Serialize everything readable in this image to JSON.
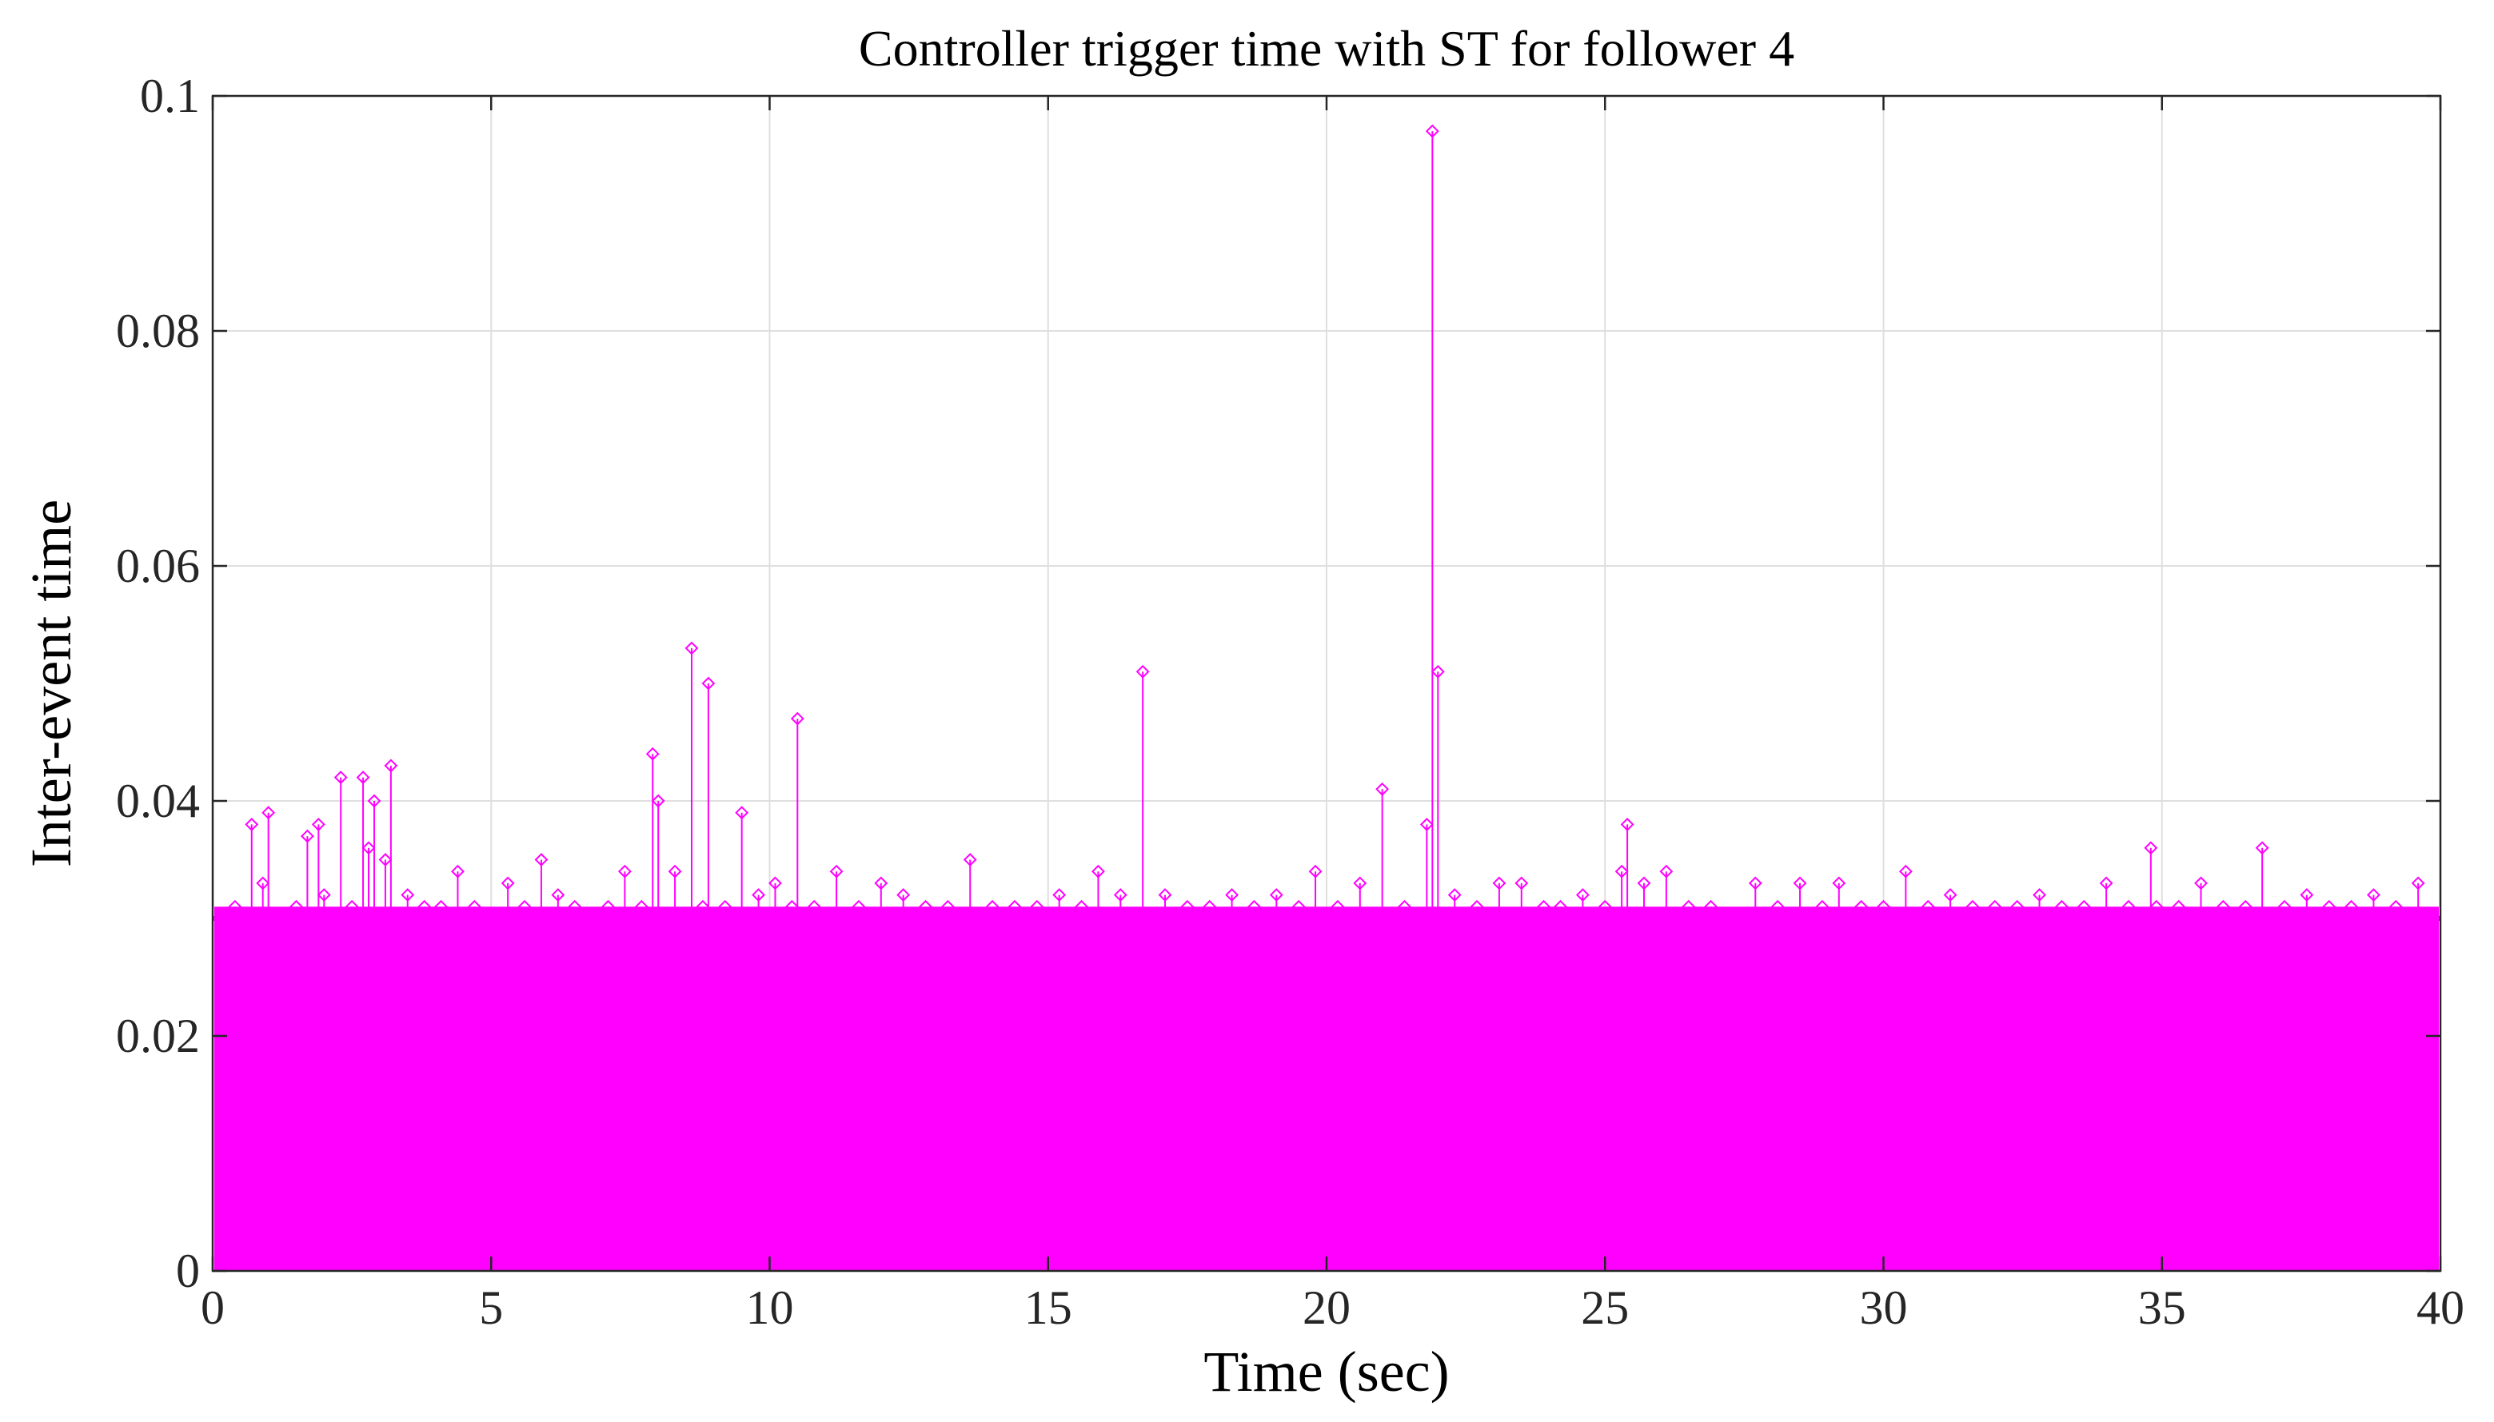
{
  "chart_data": {
    "type": "stem",
    "title": "Controller trigger time with ST for follower 4",
    "xlabel": "Time (sec)",
    "ylabel": "Inter-event time",
    "xlim": [
      0,
      40
    ],
    "ylim": [
      0,
      0.1
    ],
    "xticks": [
      0,
      5,
      10,
      15,
      20,
      25,
      30,
      35,
      40
    ],
    "xtick_labels": [
      "0",
      "5",
      "10",
      "15",
      "20",
      "25",
      "30",
      "35",
      "40"
    ],
    "yticks": [
      0,
      0.02,
      0.04,
      0.06,
      0.08,
      0.1
    ],
    "ytick_labels": [
      "0",
      "0.02",
      "0.04",
      "0.06",
      "0.08",
      "0.1"
    ],
    "grid": true,
    "marker": "diamond",
    "color": "#ff00ff",
    "series": [
      {
        "x": [
          0.1,
          0.4,
          0.7,
          0.9,
          1.0,
          1.3,
          1.5,
          1.7,
          1.9,
          2.0,
          2.1,
          2.3,
          2.5,
          2.7,
          2.8,
          2.9,
          3.1,
          3.2,
          3.5,
          3.8,
          4.1,
          4.4,
          4.7,
          5.0,
          5.3,
          5.6,
          5.9,
          6.2,
          6.5,
          6.8,
          7.1,
          7.4,
          7.7,
          7.9,
          8.0,
          8.3,
          8.6,
          8.8,
          8.9,
          9.2,
          9.5,
          9.8,
          10.1,
          10.4,
          10.5,
          10.8,
          11.2,
          11.6,
          12.0,
          12.4,
          12.8,
          13.2,
          13.6,
          14.0,
          14.4,
          14.8,
          15.2,
          15.6,
          15.9,
          16.3,
          16.7,
          17.1,
          17.5,
          17.9,
          18.3,
          18.7,
          19.1,
          19.5,
          19.8,
          20.2,
          20.6,
          21.0,
          21.1,
          21.4,
          21.7,
          21.8,
          21.9,
          22.0,
          22.3,
          22.7,
          23.1,
          23.5,
          23.9,
          24.2,
          24.6,
          25.0,
          25.3,
          25.4,
          25.7,
          26.1,
          26.5,
          26.9,
          27.3,
          27.7,
          28.1,
          28.5,
          28.9,
          29.2,
          29.6,
          30.0,
          30.4,
          30.8,
          31.2,
          31.6,
          32.0,
          32.4,
          32.8,
          33.2,
          33.6,
          34.0,
          34.4,
          34.8,
          34.9,
          35.3,
          35.7,
          36.1,
          36.5,
          36.8,
          37.2,
          37.6,
          38.0,
          38.4,
          38.8,
          39.2,
          39.6,
          39.9
        ],
        "y": [
          0.03,
          0.031,
          0.038,
          0.033,
          0.039,
          0.026,
          0.031,
          0.037,
          0.038,
          0.032,
          0.03,
          0.042,
          0.031,
          0.042,
          0.036,
          0.04,
          0.035,
          0.043,
          0.032,
          0.031,
          0.031,
          0.034,
          0.031,
          0.03,
          0.033,
          0.031,
          0.035,
          0.032,
          0.031,
          0.03,
          0.031,
          0.034,
          0.031,
          0.044,
          0.04,
          0.034,
          0.053,
          0.031,
          0.05,
          0.031,
          0.039,
          0.032,
          0.033,
          0.031,
          0.047,
          0.031,
          0.034,
          0.031,
          0.033,
          0.032,
          0.031,
          0.031,
          0.035,
          0.031,
          0.031,
          0.031,
          0.032,
          0.031,
          0.034,
          0.032,
          0.051,
          0.032,
          0.031,
          0.031,
          0.032,
          0.031,
          0.032,
          0.031,
          0.034,
          0.031,
          0.033,
          0.041,
          0.03,
          0.031,
          0.024,
          0.038,
          0.097,
          0.051,
          0.032,
          0.031,
          0.033,
          0.033,
          0.031,
          0.031,
          0.032,
          0.031,
          0.034,
          0.038,
          0.033,
          0.034,
          0.031,
          0.031,
          0.03,
          0.033,
          0.031,
          0.033,
          0.031,
          0.033,
          0.031,
          0.031,
          0.034,
          0.031,
          0.032,
          0.031,
          0.031,
          0.031,
          0.032,
          0.031,
          0.031,
          0.033,
          0.031,
          0.036,
          0.031,
          0.031,
          0.033,
          0.031,
          0.031,
          0.036,
          0.031,
          0.032,
          0.031,
          0.031,
          0.032,
          0.031,
          0.033,
          0.03
        ]
      }
    ]
  }
}
